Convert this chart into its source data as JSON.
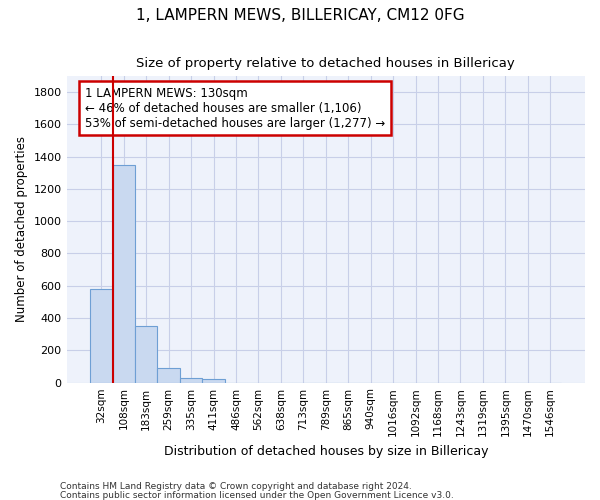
{
  "title": "1, LAMPERN MEWS, BILLERICAY, CM12 0FG",
  "subtitle": "Size of property relative to detached houses in Billericay",
  "xlabel": "Distribution of detached houses by size in Billericay",
  "ylabel": "Number of detached properties",
  "footnote1": "Contains HM Land Registry data © Crown copyright and database right 2024.",
  "footnote2": "Contains public sector information licensed under the Open Government Licence v3.0.",
  "bar_labels": [
    "32sqm",
    "108sqm",
    "183sqm",
    "259sqm",
    "335sqm",
    "411sqm",
    "486sqm",
    "562sqm",
    "638sqm",
    "713sqm",
    "789sqm",
    "865sqm",
    "940sqm",
    "1016sqm",
    "1092sqm",
    "1168sqm",
    "1243sqm",
    "1319sqm",
    "1395sqm",
    "1470sqm",
    "1546sqm"
  ],
  "bar_values": [
    580,
    1350,
    350,
    90,
    30,
    20,
    0,
    0,
    0,
    0,
    0,
    0,
    0,
    0,
    0,
    0,
    0,
    0,
    0,
    0,
    0
  ],
  "bar_color": "#c9d9f0",
  "bar_edge_color": "#6e9fd4",
  "ylim": [
    0,
    1900
  ],
  "yticks": [
    0,
    200,
    400,
    600,
    800,
    1000,
    1200,
    1400,
    1600,
    1800
  ],
  "property_line_x": 0.575,
  "property_line_color": "#cc0000",
  "annotation_line1": "1 LAMPERN MEWS: 130sqm",
  "annotation_line2": "← 46% of detached houses are smaller (1,106)",
  "annotation_line3": "53% of semi-detached houses are larger (1,277) →",
  "annotation_box_color": "#ffffff",
  "annotation_box_edge": "#cc0000",
  "bg_color": "#ffffff",
  "plot_bg_color": "#eef2fb",
  "grid_color": "#c8cfe8"
}
